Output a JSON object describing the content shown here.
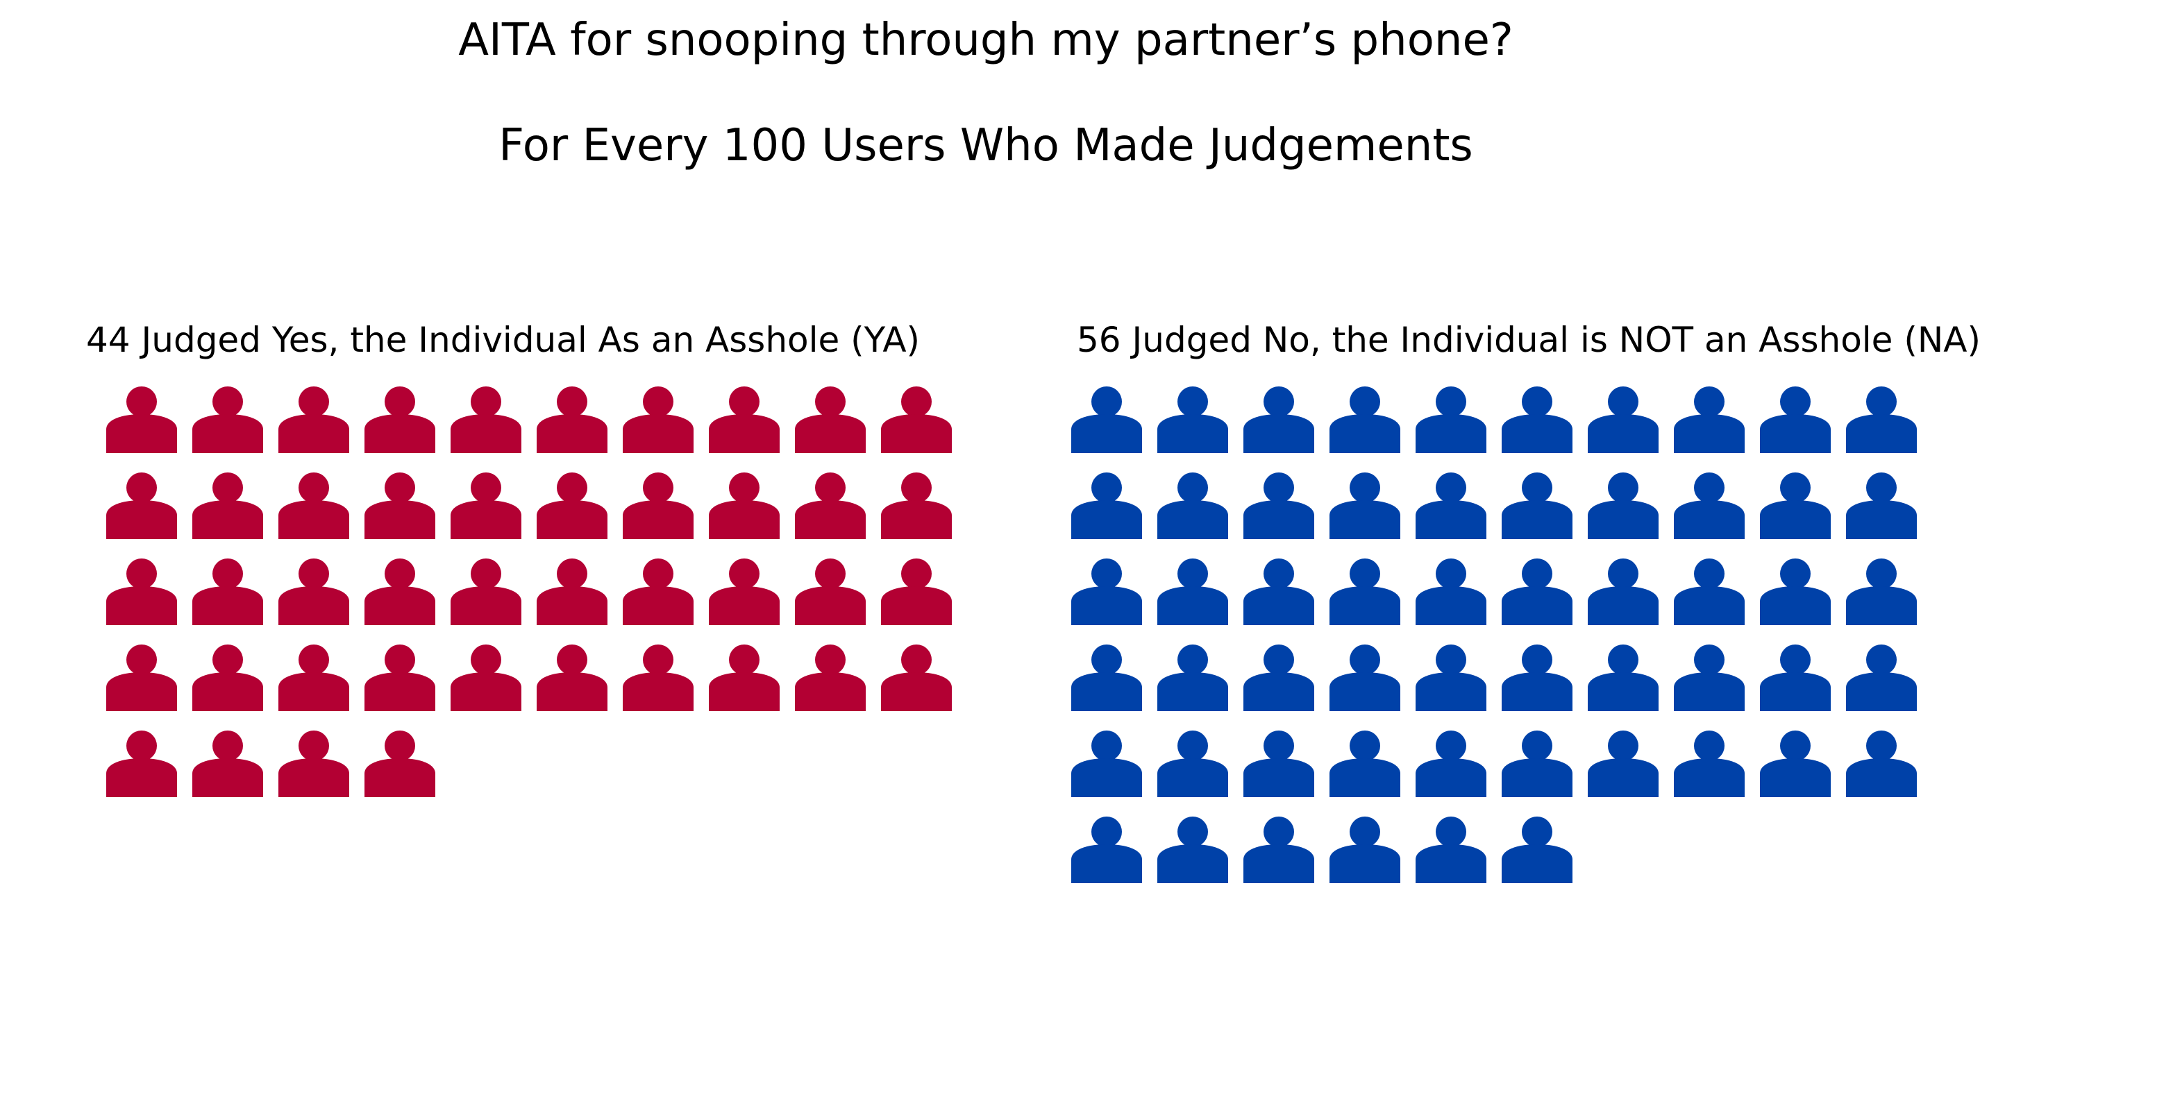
{
  "chart_data": {
    "type": "pictogram",
    "title": "AITA for snooping through my partner’s phone?",
    "subtitle": "For Every 100 Users Who Made Judgements",
    "icon": "person-icon",
    "icons_per_row": 10,
    "total": 100,
    "series": [
      {
        "key": "ya",
        "label": "44 Judged Yes, the Individual As an Asshole (YA)",
        "value": 44,
        "color": "#B30033"
      },
      {
        "key": "na",
        "label": "56 Judged No, the Individual is NOT an Asshole (NA)",
        "value": 56,
        "color": "#0041A8"
      }
    ]
  }
}
